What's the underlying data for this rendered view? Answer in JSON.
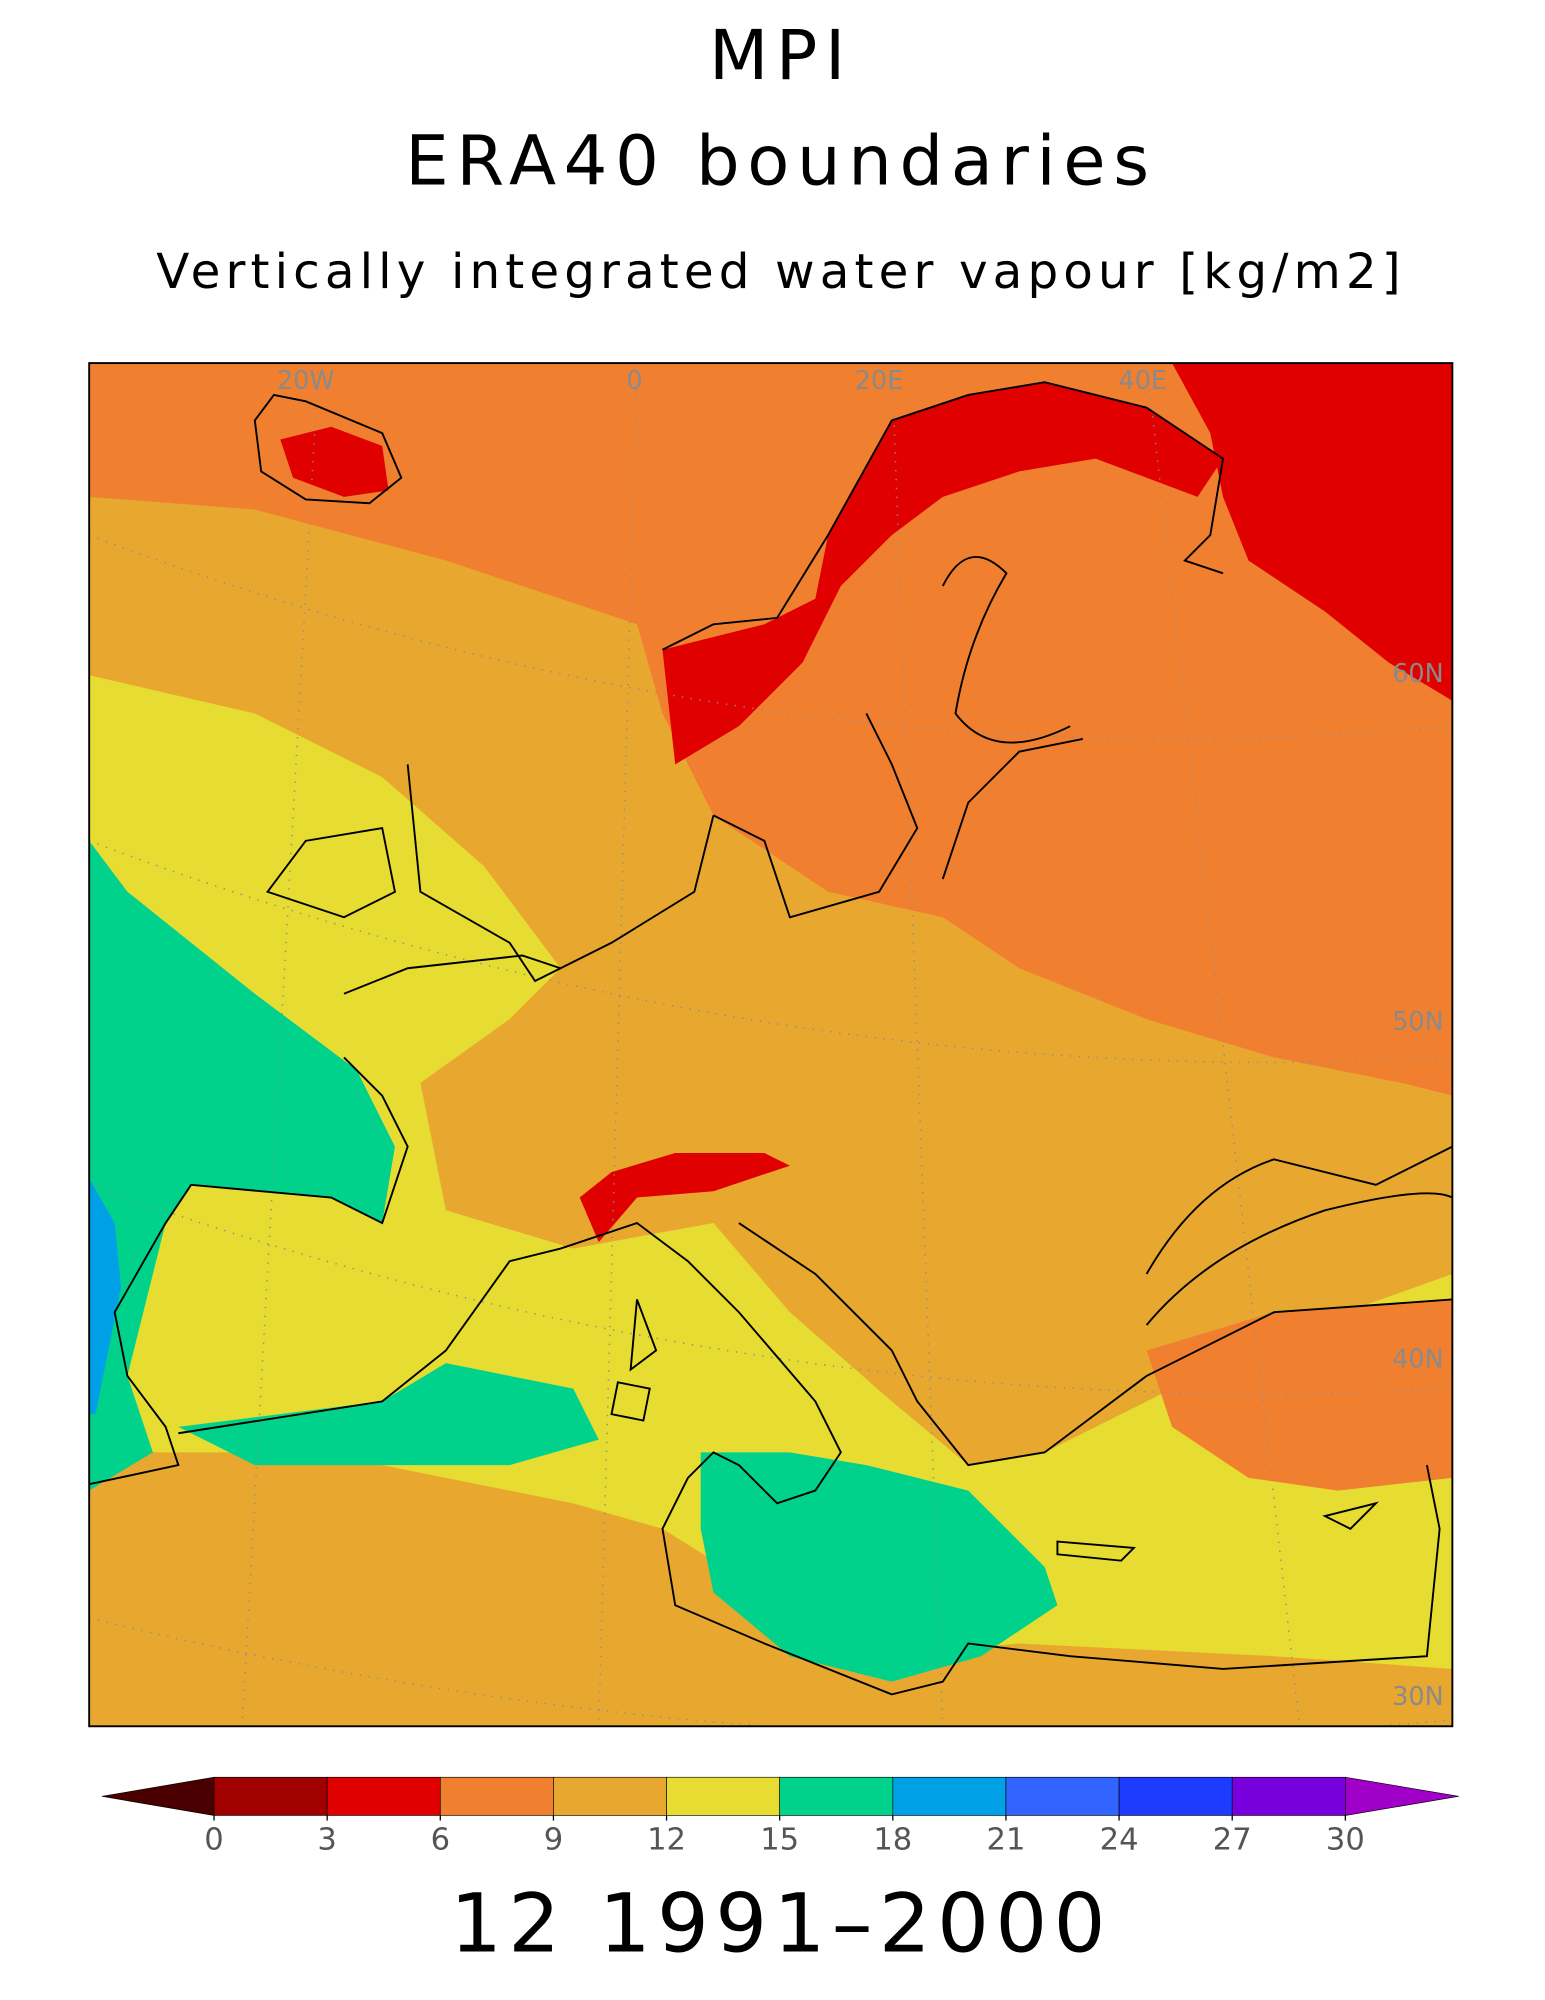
{
  "header": {
    "title": "MPI",
    "subtitle": "ERA40 boundaries",
    "variable": "Vertically integrated water vapour [kg/m2]"
  },
  "map": {
    "lon_labels": [
      "20W",
      "0",
      "20E",
      "40E"
    ],
    "lat_labels": [
      "60N",
      "50N",
      "40N",
      "30N"
    ]
  },
  "colorbar": {
    "ticks": [
      0,
      3,
      6,
      9,
      12,
      15,
      18,
      21,
      24,
      27,
      30
    ],
    "under_color": "#4a0000",
    "colors": [
      "#a00000",
      "#e00000",
      "#f08030",
      "#e8a830",
      "#e6dc32",
      "#00d28c",
      "#00a0e6",
      "#3264ff",
      "#1e3cff",
      "#7800dc"
    ],
    "over_color": "#a000c8"
  },
  "footer": "12 1991–2000"
}
